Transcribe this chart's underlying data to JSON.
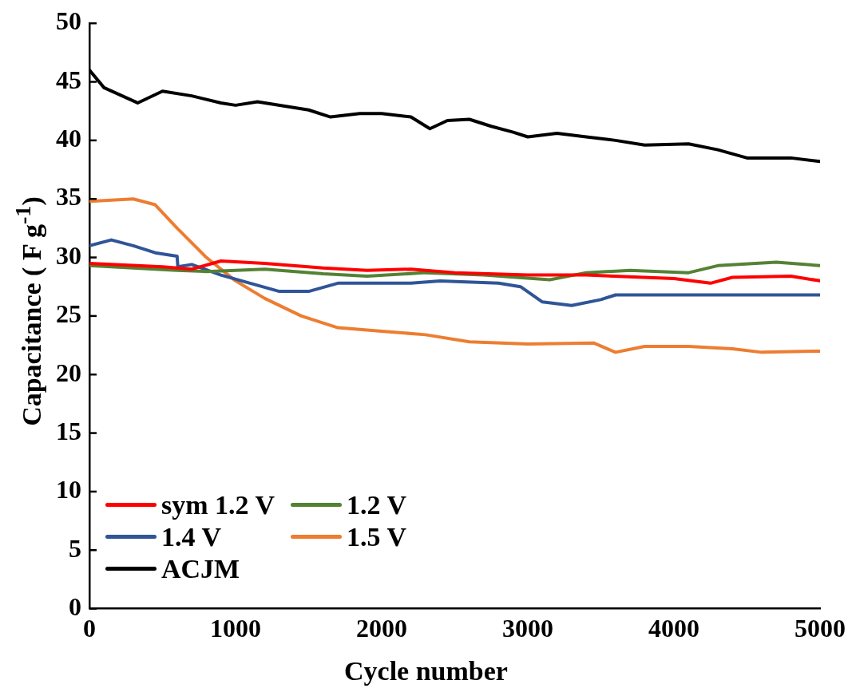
{
  "chart_data": {
    "type": "line",
    "xlabel": "Cycle number",
    "ylabel": "Capacitance ( F g$^{-1}$)",
    "xlim": [
      0,
      5000
    ],
    "xticks": [
      0,
      1000,
      2000,
      3000,
      4000,
      5000
    ],
    "ylim": [
      0,
      50
    ],
    "yticks": [
      0,
      5,
      10,
      15,
      20,
      25,
      30,
      35,
      40,
      45,
      50
    ],
    "grid": false,
    "legend": "bottom left",
    "marker": "none",
    "line_style": "solid",
    "series": [
      {
        "name": "sym 1.2 V",
        "color": "#ff0000",
        "x": [
          0,
          500,
          700,
          900,
          1200,
          1600,
          1900,
          2200,
          2500,
          3000,
          3400,
          4000,
          4250,
          4400,
          4800,
          5000
        ],
        "values": [
          29.5,
          29.2,
          29.0,
          29.7,
          29.5,
          29.1,
          28.9,
          29.0,
          28.7,
          28.5,
          28.5,
          28.2,
          27.8,
          28.3,
          28.4,
          28.0
        ]
      },
      {
        "name": "1.2 V",
        "color": "#548235",
        "x": [
          0,
          600,
          800,
          1200,
          1600,
          1900,
          2300,
          2700,
          3150,
          3400,
          3700,
          4100,
          4300,
          4700,
          5000
        ],
        "values": [
          29.3,
          28.9,
          28.8,
          29.0,
          28.6,
          28.4,
          28.7,
          28.5,
          28.1,
          28.7,
          28.9,
          28.7,
          29.3,
          29.6,
          29.3
        ]
      },
      {
        "name": "1.4 V",
        "color": "#2f5597",
        "x": [
          0,
          150,
          300,
          450,
          600,
          605,
          700,
          900,
          1100,
          1300,
          1500,
          1700,
          2200,
          2400,
          2800,
          2950,
          3100,
          3300,
          3500,
          3600,
          5000
        ],
        "values": [
          31.0,
          31.5,
          31.0,
          30.4,
          30.1,
          29.2,
          29.4,
          28.5,
          27.8,
          27.1,
          27.1,
          27.8,
          27.8,
          28.0,
          27.8,
          27.5,
          26.2,
          25.9,
          26.4,
          26.8,
          26.8
        ]
      },
      {
        "name": "1.5 V",
        "color": "#ed7d31",
        "x": [
          0,
          300,
          450,
          600,
          800,
          1000,
          1200,
          1450,
          1700,
          2000,
          2300,
          2600,
          3000,
          3450,
          3600,
          3800,
          4100,
          4400,
          4600,
          5000
        ],
        "values": [
          34.8,
          35.0,
          34.5,
          32.5,
          30.0,
          28.0,
          26.5,
          25.0,
          24.0,
          23.7,
          23.4,
          22.8,
          22.6,
          22.7,
          21.9,
          22.4,
          22.4,
          22.2,
          21.9,
          22.0
        ]
      },
      {
        "name": "ACJM",
        "color": "#000000",
        "x": [
          0,
          100,
          330,
          500,
          700,
          900,
          1000,
          1150,
          1500,
          1650,
          1850,
          2000,
          2200,
          2330,
          2450,
          2600,
          2750,
          2900,
          3000,
          3200,
          3400,
          3600,
          3800,
          4100,
          4300,
          4500,
          4800,
          5000
        ],
        "values": [
          46.0,
          44.5,
          43.2,
          44.2,
          43.8,
          43.2,
          43.0,
          43.3,
          42.6,
          42.0,
          42.3,
          42.3,
          42.0,
          41.0,
          41.7,
          41.8,
          41.2,
          40.7,
          40.3,
          40.6,
          40.3,
          40.0,
          39.6,
          39.7,
          39.2,
          38.5,
          38.5,
          38.2
        ]
      }
    ]
  }
}
